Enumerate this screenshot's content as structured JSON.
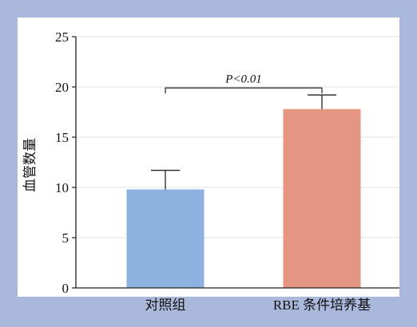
{
  "chart_data": {
    "type": "bar",
    "ylabel": "血管数量",
    "xlabel": "",
    "ylim": [
      0,
      25
    ],
    "yticks": [
      0,
      5,
      10,
      15,
      20,
      25
    ],
    "grid": true,
    "categories": [
      "对照组",
      "RBE 条件培养基"
    ],
    "values": [
      9.8,
      17.8
    ],
    "errors": [
      1.9,
      1.4
    ],
    "bar_colors": [
      "#8db2e0",
      "#e59683"
    ],
    "annotation": {
      "text": "P<0.01",
      "between": [
        0,
        1
      ],
      "y": 19.9
    }
  },
  "colors": {
    "background": "#aab8dc",
    "plot_area": "#ffffff",
    "grid": "#e2e2e2",
    "axis": "#222222"
  }
}
